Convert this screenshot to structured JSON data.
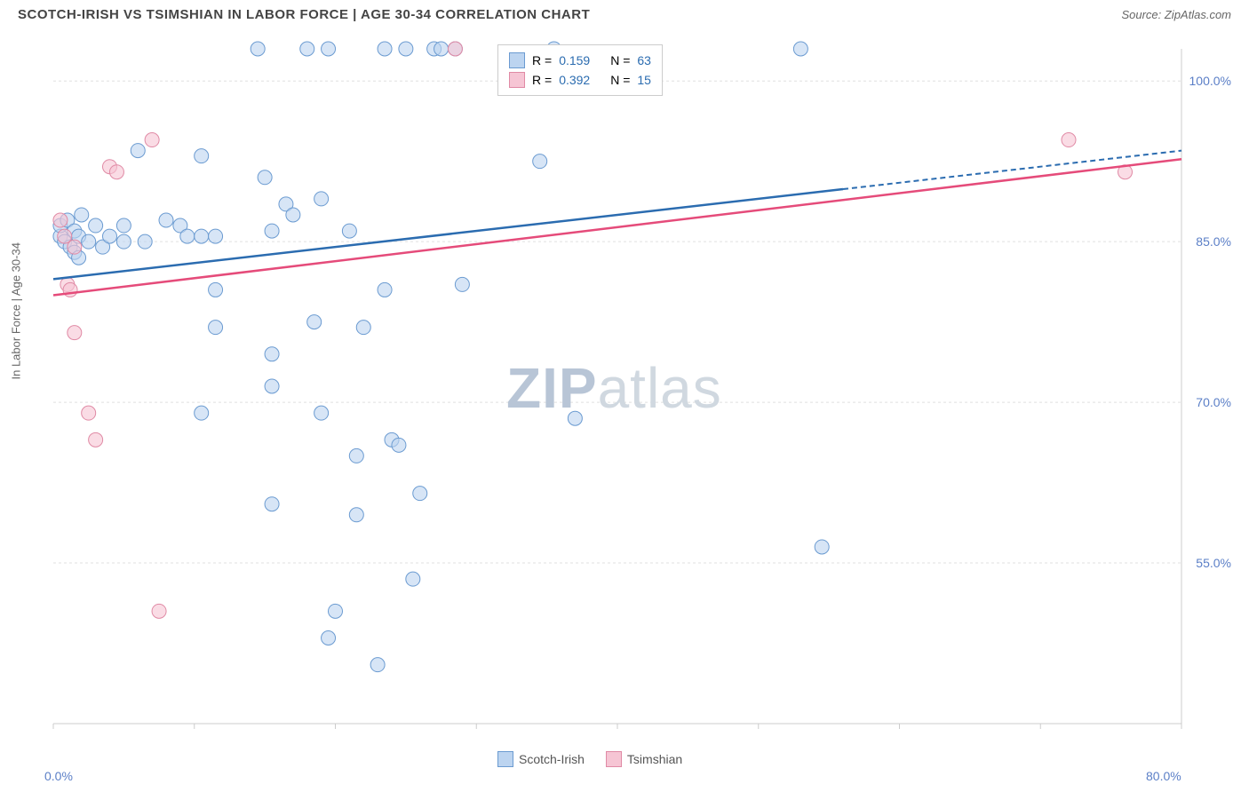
{
  "header": {
    "title": "SCOTCH-IRISH VS TSIMSHIAN IN LABOR FORCE | AGE 30-34 CORRELATION CHART",
    "source": "Source: ZipAtlas.com"
  },
  "y_axis_label": "In Labor Force | Age 30-34",
  "watermark": {
    "bold": "ZIP",
    "rest": "atlas"
  },
  "chart": {
    "type": "scatter",
    "xlim": [
      0,
      80
    ],
    "ylim": [
      40,
      103
    ],
    "x_ticks": [
      0,
      10,
      20,
      30,
      40,
      50,
      60,
      70,
      80
    ],
    "y_ticks": [
      55,
      70,
      85,
      100
    ],
    "x_tick_labels": [
      "0.0%",
      "",
      "",
      "",
      "",
      "",
      "",
      "",
      "80.0%"
    ],
    "y_tick_labels": [
      "55.0%",
      "70.0%",
      "85.0%",
      "100.0%"
    ],
    "grid_color": "#e0e0e0",
    "axis_color": "#cccccc",
    "background_color": "#ffffff",
    "tick_label_color": "#5b7fc7",
    "series": [
      {
        "name": "Scotch-Irish",
        "color_fill": "#bcd4f0",
        "color_stroke": "#6b9bd1",
        "line_color": "#2b6cb0",
        "marker_radius": 8,
        "marker_opacity": 0.6,
        "trend": {
          "x1": 0,
          "y1": 81.5,
          "x2": 80,
          "y2": 93.5,
          "solid_until_x": 56
        },
        "points": [
          [
            0.5,
            85.5
          ],
          [
            0.5,
            86.5
          ],
          [
            0.8,
            85.0
          ],
          [
            1.0,
            87.0
          ],
          [
            1.2,
            84.5
          ],
          [
            1.5,
            86.0
          ],
          [
            1.5,
            84.0
          ],
          [
            1.8,
            85.5
          ],
          [
            1.8,
            83.5
          ],
          [
            2.0,
            87.5
          ],
          [
            2.5,
            85.0
          ],
          [
            3.0,
            86.5
          ],
          [
            3.5,
            84.5
          ],
          [
            4.0,
            85.5
          ],
          [
            5.0,
            86.5
          ],
          [
            5.0,
            85.0
          ],
          [
            6.0,
            93.5
          ],
          [
            6.5,
            85.0
          ],
          [
            8.0,
            87.0
          ],
          [
            9.0,
            86.5
          ],
          [
            9.5,
            85.5
          ],
          [
            10.5,
            93.0
          ],
          [
            10.5,
            85.5
          ],
          [
            11.5,
            85.5
          ],
          [
            11.5,
            80.5
          ],
          [
            11.5,
            77.0
          ],
          [
            37.0,
            68.5
          ],
          [
            14.5,
            103.0
          ],
          [
            15.0,
            91.0
          ],
          [
            15.5,
            86.0
          ],
          [
            15.5,
            74.5
          ],
          [
            15.5,
            71.5
          ],
          [
            15.5,
            60.5
          ],
          [
            16.5,
            88.5
          ],
          [
            17.0,
            87.5
          ],
          [
            18.0,
            103.0
          ],
          [
            18.5,
            77.5
          ],
          [
            19.0,
            89.0
          ],
          [
            19.0,
            69.0
          ],
          [
            19.5,
            48.0
          ],
          [
            20.0,
            50.5
          ],
          [
            21.0,
            86.0
          ],
          [
            21.5,
            65.0
          ],
          [
            21.5,
            59.5
          ],
          [
            22.0,
            77.0
          ],
          [
            23.5,
            103.0
          ],
          [
            23.5,
            80.5
          ],
          [
            24.0,
            66.5
          ],
          [
            24.5,
            66.0
          ],
          [
            23.0,
            45.5
          ],
          [
            25.0,
            103.0
          ],
          [
            25.5,
            53.5
          ],
          [
            26.0,
            61.5
          ],
          [
            27.0,
            103.0
          ],
          [
            27.5,
            103.0
          ],
          [
            28.5,
            103.0
          ],
          [
            29.0,
            81.0
          ],
          [
            34.5,
            92.5
          ],
          [
            35.5,
            103.0
          ],
          [
            10.5,
            69.0
          ],
          [
            53.0,
            103.0
          ],
          [
            54.5,
            56.5
          ],
          [
            19.5,
            103.0
          ]
        ]
      },
      {
        "name": "Tsimshian",
        "color_fill": "#f6c5d4",
        "color_stroke": "#e08aa5",
        "line_color": "#e54b7a",
        "marker_radius": 8,
        "marker_opacity": 0.6,
        "trend": {
          "x1": 0,
          "y1": 80.0,
          "x2": 80,
          "y2": 92.7,
          "solid_until_x": 80
        },
        "points": [
          [
            0.5,
            87.0
          ],
          [
            0.8,
            85.5
          ],
          [
            1.0,
            81.0
          ],
          [
            1.2,
            80.5
          ],
          [
            1.5,
            76.5
          ],
          [
            2.5,
            69.0
          ],
          [
            3.0,
            66.5
          ],
          [
            4.0,
            92.0
          ],
          [
            4.5,
            91.5
          ],
          [
            7.0,
            94.5
          ],
          [
            7.5,
            50.5
          ],
          [
            28.5,
            103.0
          ],
          [
            72.0,
            94.5
          ],
          [
            76.0,
            91.5
          ],
          [
            1.5,
            84.5
          ]
        ]
      }
    ],
    "legend_top": {
      "rows": [
        {
          "swatch_fill": "#bcd4f0",
          "swatch_stroke": "#6b9bd1",
          "r_label": "R =",
          "r_value": "0.159",
          "n_label": "N =",
          "n_value": "63"
        },
        {
          "swatch_fill": "#f6c5d4",
          "swatch_stroke": "#e08aa5",
          "r_label": "R =",
          "r_value": "0.392",
          "n_label": "N =",
          "n_value": "15"
        }
      ]
    },
    "legend_bottom": [
      {
        "swatch_fill": "#bcd4f0",
        "swatch_stroke": "#6b9bd1",
        "label": "Scotch-Irish"
      },
      {
        "swatch_fill": "#f6c5d4",
        "swatch_stroke": "#e08aa5",
        "label": "Tsimshian"
      }
    ]
  }
}
